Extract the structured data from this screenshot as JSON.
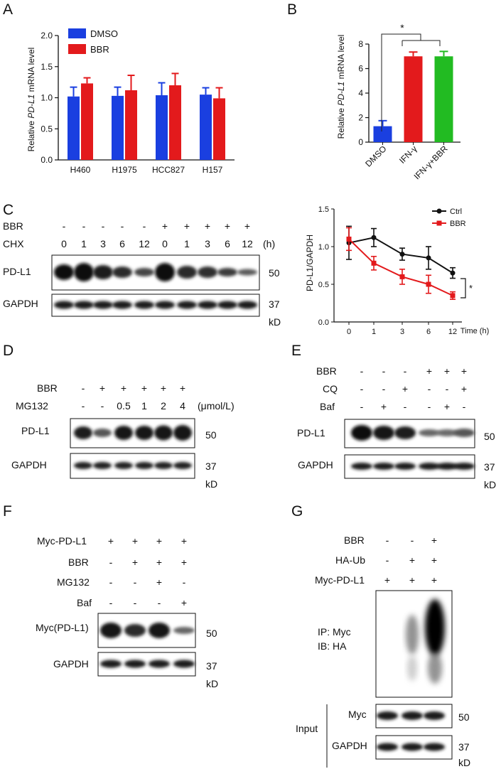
{
  "panelA": {
    "letter": "A",
    "ylabel_prefix": "Relative ",
    "ylabel_italic": "PD-L1",
    "ylabel_suffix": " mRNA level",
    "chart_data": {
      "type": "bar",
      "categories": [
        "H460",
        "H1975",
        "HCC827",
        "H157"
      ],
      "ylim": [
        0,
        2.0
      ],
      "yticks": [
        "0.0",
        "0.5",
        "1.0",
        "1.5",
        "2.0"
      ],
      "series": [
        {
          "name": "DMSO",
          "color": "#1a3fe0",
          "values": [
            1.02,
            1.03,
            1.04,
            1.05
          ],
          "errors": [
            0.15,
            0.14,
            0.2,
            0.11
          ]
        },
        {
          "name": "BBR",
          "color": "#e31a1c",
          "values": [
            1.23,
            1.12,
            1.2,
            0.99
          ],
          "errors": [
            0.09,
            0.24,
            0.19,
            0.17
          ]
        }
      ]
    }
  },
  "panelB": {
    "letter": "B",
    "ylabel_prefix": "Relative ",
    "ylabel_italic": "PD-L1",
    "ylabel_suffix": " mRNA level",
    "significance": "*",
    "chart_data": {
      "type": "bar",
      "categories": [
        "DMSO",
        "IFN-γ",
        "IFN-γ+BBR"
      ],
      "ylim": [
        0,
        8
      ],
      "yticks": [
        "0",
        "2",
        "4",
        "6",
        "8"
      ],
      "values": [
        1.3,
        7.0,
        7.0
      ],
      "errors": [
        0.45,
        0.35,
        0.4
      ],
      "colors": [
        "#1a3fe0",
        "#e31a1c",
        "#22bb22"
      ]
    }
  },
  "panelC": {
    "letter": "C",
    "row_labels": [
      "BBR",
      "CHX"
    ],
    "bbr_signs": [
      "-",
      "-",
      "-",
      "-",
      "-",
      "+",
      "+",
      "+",
      "+",
      "+"
    ],
    "chx_values": [
      "0",
      "1",
      "3",
      "6",
      "12",
      "0",
      "1",
      "3",
      "6",
      "12"
    ],
    "unit": "(h)",
    "blot_labels": [
      "PD-L1",
      "GAPDH"
    ],
    "mw": [
      "50",
      "37"
    ],
    "kd": "kD",
    "chart": {
      "ylabel": "PD-L1/GAPDH",
      "xlabel": "Time (h)",
      "significance": "*",
      "chart_data": {
        "type": "line",
        "x": [
          "0",
          "1",
          "3",
          "6",
          "12"
        ],
        "ylim": [
          0,
          1.5
        ],
        "yticks": [
          "0.0",
          "0.5",
          "1.0",
          "1.5"
        ],
        "series": [
          {
            "name": "Ctrl",
            "color": "#111111",
            "values": [
              1.05,
              1.12,
              0.9,
              0.85,
              0.65
            ],
            "errors": [
              0.22,
              0.12,
              0.08,
              0.15,
              0.07
            ]
          },
          {
            "name": "BBR",
            "color": "#e31a1c",
            "values": [
              1.1,
              0.78,
              0.6,
              0.5,
              0.35
            ],
            "errors": [
              0.15,
              0.09,
              0.1,
              0.12,
              0.05
            ]
          }
        ]
      }
    }
  },
  "panelD": {
    "letter": "D",
    "row_labels": [
      "BBR",
      "MG132"
    ],
    "bbr_signs": [
      "-",
      "+",
      "+",
      "+",
      "+",
      "+"
    ],
    "mg132_values": [
      "-",
      "-",
      "0.5",
      "1",
      "2",
      "4"
    ],
    "unit": "(μmol/L)",
    "blot_labels": [
      "PD-L1",
      "GAPDH"
    ],
    "mw": [
      "50",
      "37"
    ],
    "kd": "kD"
  },
  "panelE": {
    "letter": "E",
    "row_labels": [
      "BBR",
      "CQ",
      "Baf"
    ],
    "bbr_signs": [
      "-",
      "-",
      "-",
      "+",
      "+",
      "+"
    ],
    "cq_signs": [
      "-",
      "-",
      "+",
      "-",
      "-",
      "+"
    ],
    "baf_signs": [
      "-",
      "+",
      "-",
      "-",
      "+",
      "-"
    ],
    "blot_labels": [
      "PD-L1",
      "GAPDH"
    ],
    "mw": [
      "50",
      "37"
    ],
    "kd": "kD"
  },
  "panelF": {
    "letter": "F",
    "row_labels": [
      "Myc-PD-L1",
      "BBR",
      "MG132",
      "Baf"
    ],
    "myc_signs": [
      "+",
      "+",
      "+",
      "+"
    ],
    "bbr_signs": [
      "-",
      "+",
      "+",
      "+"
    ],
    "mg132_signs": [
      "-",
      "-",
      "+",
      "-"
    ],
    "baf_signs": [
      "-",
      "-",
      "-",
      "+"
    ],
    "blot_labels": [
      "Myc(PD-L1)",
      "GAPDH"
    ],
    "mw": [
      "50",
      "37"
    ],
    "kd": "kD"
  },
  "panelG": {
    "letter": "G",
    "row_labels": [
      "BBR",
      "HA-Ub",
      "Myc-PD-L1"
    ],
    "bbr_signs": [
      "-",
      "-",
      "+"
    ],
    "haub_signs": [
      "-",
      "+",
      "+"
    ],
    "myc_signs": [
      "+",
      "+",
      "+"
    ],
    "ip_label": "IP: Myc",
    "ib_label": "IB: HA",
    "input_label": "Input",
    "blot_labels": [
      "Myc",
      "GAPDH"
    ],
    "mw": [
      "50",
      "37"
    ],
    "kd": "kD"
  }
}
